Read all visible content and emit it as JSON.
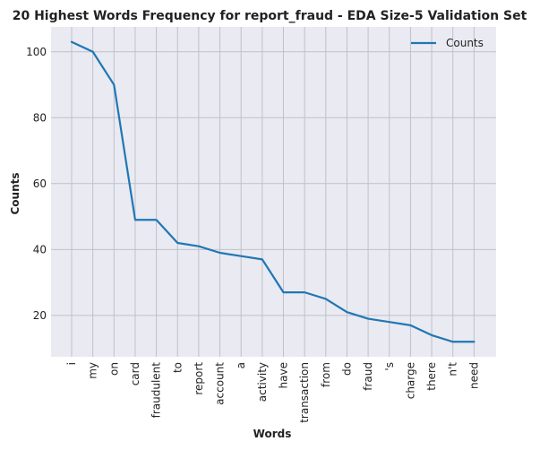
{
  "chart_data": {
    "type": "line",
    "title": "20 Highest Words Frequency for report_fraud - EDA Size-5 Validation Set",
    "xlabel": "Words",
    "ylabel": "Counts",
    "categories": [
      "i",
      "my",
      "on",
      "card",
      "fraudulent",
      "to",
      "report",
      "account",
      "a",
      "activity",
      "have",
      "transaction",
      "from",
      "do",
      "fraud",
      "'s",
      "charge",
      "there",
      "n't",
      "need"
    ],
    "series": [
      {
        "name": "Counts",
        "values": [
          103,
          100,
          90,
          49,
          49,
          42,
          41,
          39,
          38,
          37,
          27,
          27,
          25,
          21,
          19,
          18,
          17,
          14,
          12,
          12
        ],
        "color": "#1f77b4"
      }
    ],
    "ylim": [
      7.45,
      107.55
    ],
    "yticks": [
      20,
      40,
      60,
      80,
      100
    ],
    "grid": true,
    "legend_position": "top-right",
    "colors": {
      "plot_background": "#eaeaf2",
      "grid": "#c0c0c8",
      "line": "#1f77b4"
    }
  }
}
